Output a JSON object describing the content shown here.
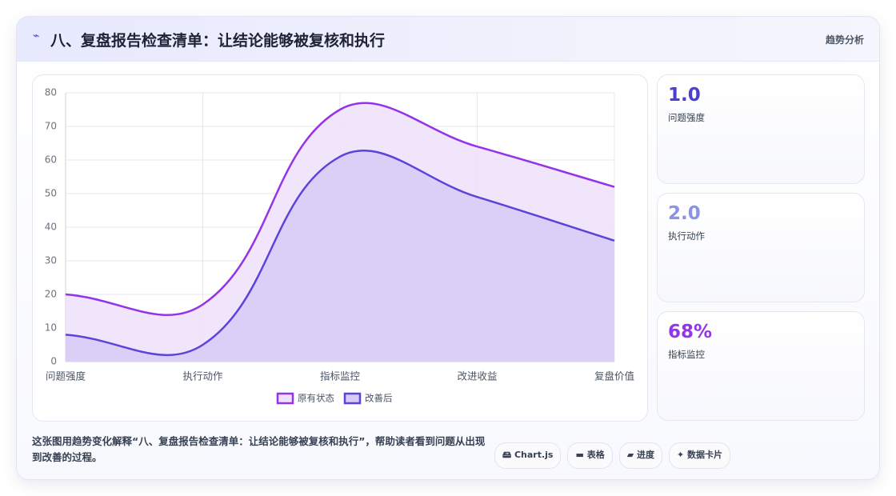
{
  "header": {
    "title": "八、复盘报告检查清单：让结论能够被复核和执行",
    "tag": "趋势分析"
  },
  "chart_data": {
    "type": "line",
    "categories": [
      "问题强度",
      "执行动作",
      "指标监控",
      "改进收益",
      "复盘价值"
    ],
    "series": [
      {
        "name": "原有状态",
        "color": "#9333ea",
        "fill": "#efe1fb",
        "values": [
          20,
          17,
          75,
          64,
          52
        ]
      },
      {
        "name": "改善后",
        "color": "#5b44d8",
        "fill": "#d8cbf6",
        "values": [
          8,
          5,
          61,
          49,
          36
        ]
      }
    ],
    "ylim": [
      0,
      80
    ],
    "yticks": [
      0,
      10,
      20,
      30,
      40,
      50,
      60,
      70,
      80
    ],
    "grid": true,
    "legend": "bottom"
  },
  "stats": [
    {
      "value": "1.0",
      "label": "问题强度",
      "color": "#4b3fcf"
    },
    {
      "value": "2.0",
      "label": "执行动作",
      "color": "#8b93e8"
    },
    {
      "value": "68%",
      "label": "指标监控",
      "color": "#9333ea"
    }
  ],
  "description": "这张图用趋势变化解释“八、复盘报告检查清单：让结论能够被复核和执行”，帮助读者看到问题从出现到改善的过程。",
  "tags": [
    "Chart.js",
    "表格",
    "进度",
    "数据卡片"
  ]
}
